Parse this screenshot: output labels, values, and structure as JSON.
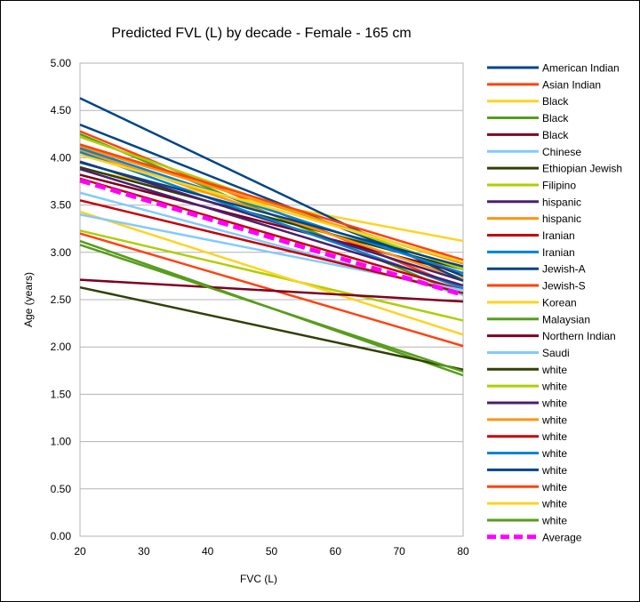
{
  "chart_data": {
    "type": "line",
    "title": "Predicted FVL (L) by decade - Female - 165 cm",
    "xlabel": "FVC (L)",
    "ylabel": "Age (years)",
    "xlim": [
      20,
      80
    ],
    "ylim": [
      0,
      5
    ],
    "xticks": [
      "20",
      "30",
      "40",
      "50",
      "60",
      "70",
      "80"
    ],
    "yticks": [
      "0.00",
      "0.50",
      "1.00",
      "1.50",
      "2.00",
      "2.50",
      "3.00",
      "3.50",
      "4.00",
      "4.50",
      "5.00"
    ],
    "grid": "horizontal",
    "legend_position": "right",
    "x": [
      20,
      80
    ],
    "series": [
      {
        "name": "American Indian",
        "color": "#004586",
        "dash": false,
        "values": [
          4.35,
          2.75
        ]
      },
      {
        "name": "Asian Indian",
        "color": "#ff420e",
        "dash": false,
        "values": [
          4.28,
          2.62
        ]
      },
      {
        "name": "Black",
        "color": "#ffd320",
        "dash": false,
        "values": [
          3.88,
          3.12
        ]
      },
      {
        "name": "Black",
        "color": "#579d1c",
        "dash": false,
        "values": [
          4.25,
          2.55
        ]
      },
      {
        "name": "Black",
        "color": "#7e0021",
        "dash": false,
        "values": [
          3.82,
          2.78
        ]
      },
      {
        "name": "Chinese",
        "color": "#83caff",
        "dash": false,
        "values": [
          3.63,
          2.55
        ]
      },
      {
        "name": "Ethiopian Jewish",
        "color": "#314004",
        "dash": false,
        "values": [
          3.9,
          2.82
        ]
      },
      {
        "name": "Filipino",
        "color": "#aecf00",
        "dash": false,
        "values": [
          3.23,
          2.28
        ]
      },
      {
        "name": "hispanic",
        "color": "#4b1f6f",
        "dash": false,
        "values": [
          3.96,
          2.7
        ]
      },
      {
        "name": "hispanic",
        "color": "#ff950e",
        "dash": false,
        "values": [
          4.08,
          2.72
        ]
      },
      {
        "name": "Iranian",
        "color": "#c5000b",
        "dash": false,
        "values": [
          3.78,
          2.6
        ]
      },
      {
        "name": "Iranian",
        "color": "#0084d1",
        "dash": false,
        "values": [
          4.06,
          2.62
        ]
      },
      {
        "name": "Jewish-A",
        "color": "#004586",
        "dash": false,
        "values": [
          4.63,
          2.7
        ]
      },
      {
        "name": "Jewish-S",
        "color": "#ff420e",
        "dash": false,
        "values": [
          3.2,
          2.01
        ]
      },
      {
        "name": "Korean",
        "color": "#ffd320",
        "dash": false,
        "values": [
          3.43,
          2.13
        ]
      },
      {
        "name": "Malaysian",
        "color": "#579d1c",
        "dash": false,
        "values": [
          3.12,
          1.7
        ]
      },
      {
        "name": "Northern Indian",
        "color": "#7e0021",
        "dash": false,
        "values": [
          2.71,
          2.48
        ]
      },
      {
        "name": "Saudi",
        "color": "#83caff",
        "dash": false,
        "values": [
          3.4,
          2.6
        ]
      },
      {
        "name": "white",
        "color": "#314004",
        "dash": false,
        "values": [
          2.63,
          1.76
        ]
      },
      {
        "name": "white",
        "color": "#aecf00",
        "dash": false,
        "values": [
          4.22,
          2.82
        ]
      },
      {
        "name": "white",
        "color": "#4b1f6f",
        "dash": false,
        "values": [
          3.88,
          2.65
        ]
      },
      {
        "name": "white",
        "color": "#ff950e",
        "dash": false,
        "values": [
          4.12,
          2.88
        ]
      },
      {
        "name": "white",
        "color": "#c5000b",
        "dash": false,
        "values": [
          3.55,
          2.57
        ]
      },
      {
        "name": "white",
        "color": "#0084d1",
        "dash": false,
        "values": [
          4.1,
          2.78
        ]
      },
      {
        "name": "white",
        "color": "#004586",
        "dash": false,
        "values": [
          3.95,
          2.85
        ]
      },
      {
        "name": "white",
        "color": "#ff420e",
        "dash": false,
        "values": [
          4.14,
          2.92
        ]
      },
      {
        "name": "white",
        "color": "#ffd320",
        "dash": false,
        "values": [
          4.03,
          2.9
        ]
      },
      {
        "name": "white",
        "color": "#579d1c",
        "dash": false,
        "values": [
          3.08,
          1.74
        ]
      },
      {
        "name": "Average",
        "color": "#ff00ff",
        "dash": true,
        "values": [
          3.76,
          2.55
        ]
      }
    ]
  }
}
